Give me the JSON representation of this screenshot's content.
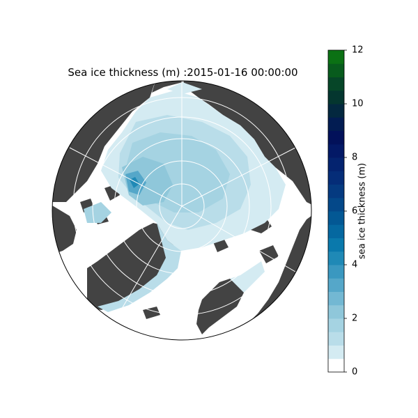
{
  "map": {
    "title": "Sea ice thickness (m) :2015-01-16 00:00:00",
    "projection": "north-polar-stereographic",
    "colors": {
      "land": "#434343",
      "ocean": "#ffffff",
      "graticule": "#ffffff"
    }
  },
  "colorbar": {
    "label": "sea ice thickness (m)",
    "min": 0,
    "max": 12,
    "ticks": [
      "0",
      "2",
      "4",
      "6",
      "8",
      "10",
      "12"
    ],
    "levels": 24,
    "colors": [
      "#ffffff",
      "#d4ebf2",
      "#b9dde9",
      "#a5d3e2",
      "#8fc7da",
      "#73b8d3",
      "#55a7c9",
      "#3a98c0",
      "#1f89b6",
      "#0a79ac",
      "#0568a0",
      "#035894",
      "#044889",
      "#053a80",
      "#052d78",
      "#04236f",
      "#031966",
      "#02115a",
      "#021c52",
      "#03283f",
      "#04362f",
      "#064628",
      "#085b1d",
      "#0b7114"
    ]
  }
}
